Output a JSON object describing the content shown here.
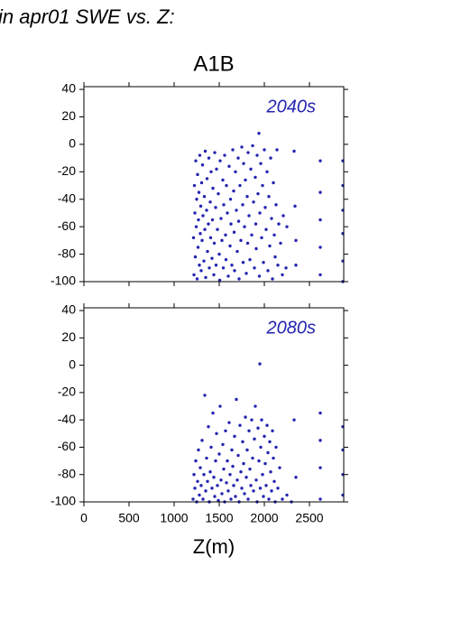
{
  "header": "in apr01 SWE vs. Z:",
  "chart_data": [
    {
      "type": "scatter",
      "title": "A1B",
      "annotation": "2040s",
      "color": "#2424b0",
      "xlim": [
        0,
        2880
      ],
      "ylim": [
        -100,
        42
      ],
      "yticks": [
        -100,
        -80,
        -60,
        -40,
        -20,
        0,
        20,
        40
      ],
      "x": [
        1215,
        1220,
        1225,
        1230,
        1235,
        1240,
        1245,
        1250,
        1255,
        1260,
        1265,
        1270,
        1275,
        1280,
        1285,
        1290,
        1295,
        1300,
        1305,
        1310,
        1315,
        1320,
        1330,
        1335,
        1340,
        1345,
        1350,
        1360,
        1365,
        1370,
        1380,
        1385,
        1390,
        1400,
        1405,
        1410,
        1420,
        1425,
        1430,
        1440,
        1445,
        1450,
        1460,
        1465,
        1470,
        1480,
        1490,
        1500,
        1505,
        1510,
        1520,
        1530,
        1540,
        1545,
        1550,
        1560,
        1570,
        1575,
        1580,
        1590,
        1600,
        1610,
        1620,
        1625,
        1630,
        1640,
        1650,
        1660,
        1665,
        1670,
        1680,
        1690,
        1700,
        1710,
        1715,
        1720,
        1730,
        1740,
        1750,
        1760,
        1765,
        1770,
        1780,
        1790,
        1800,
        1810,
        1815,
        1820,
        1830,
        1840,
        1850,
        1860,
        1870,
        1880,
        1890,
        1900,
        1905,
        1910,
        1920,
        1930,
        1940,
        1945,
        1950,
        1960,
        1970,
        1980,
        1990,
        2000,
        2010,
        2020,
        2030,
        2040,
        2050,
        2060,
        2070,
        2080,
        2090,
        2100,
        2110,
        2120,
        2130,
        2140,
        2150,
        2160,
        2180,
        2200,
        2210,
        2240,
        2250,
        2330,
        2340,
        2350,
        2350,
        2620,
        2620,
        2620,
        2620,
        2620,
        2870,
        2870,
        2870,
        2870,
        2870,
        2870
      ],
      "y": [
        -68,
        -95,
        -30,
        -50,
        -82,
        -12,
        -60,
        -40,
        -98,
        -22,
        -75,
        -55,
        -35,
        -88,
        -8,
        -65,
        -45,
        -92,
        -28,
        -70,
        -15,
        -52,
        -85,
        -38,
        -62,
        -5,
        -97,
        -48,
        -25,
        -78,
        -58,
        -10,
        -90,
        -42,
        -68,
        -20,
        -83,
        -55,
        -32,
        -95,
        -72,
        -6,
        -46,
        -88,
        -18,
        -62,
        -36,
        -80,
        -99,
        -12,
        -54,
        -70,
        -26,
        -90,
        -44,
        -8,
        -66,
        -84,
        -30,
        -50,
        -96,
        -16,
        -74,
        -40,
        -58,
        -88,
        -4,
        -34,
        -64,
        -92,
        -20,
        -48,
        -78,
        -10,
        -56,
        -98,
        -30,
        -70,
        -2,
        -44,
        -86,
        -14,
        -60,
        -26,
        -94,
        -38,
        -72,
        -6,
        -52,
        -84,
        -18,
        -66,
        -1,
        -42,
        -90,
        -24,
        -58,
        -76,
        -8,
        -36,
        8,
        -96,
        -50,
        -14,
        -68,
        -30,
        -86,
        -4,
        -46,
        -62,
        -20,
        -92,
        -38,
        -74,
        -10,
        -54,
        -98,
        -28,
        -66,
        -82,
        -44,
        -4,
        -88,
        -58,
        -72,
        -95,
        -52,
        -90,
        -60,
        -5,
        -45,
        -70,
        -88,
        -12,
        -35,
        -55,
        -75,
        -95,
        -12,
        -30,
        -48,
        -65,
        -85,
        -100
      ]
    },
    {
      "type": "scatter",
      "annotation": "2080s",
      "color": "#2424b0",
      "xlabel": "Z(m)",
      "xlim": [
        0,
        2880
      ],
      "xticks": [
        0,
        500,
        1000,
        1500,
        2000,
        2500
      ],
      "ylim": [
        -100,
        42
      ],
      "yticks": [
        -100,
        -80,
        -60,
        -40,
        -20,
        0,
        20,
        40
      ],
      "x": [
        1210,
        1220,
        1230,
        1240,
        1250,
        1260,
        1270,
        1280,
        1290,
        1300,
        1310,
        1320,
        1330,
        1340,
        1350,
        1360,
        1370,
        1380,
        1390,
        1400,
        1410,
        1420,
        1430,
        1440,
        1450,
        1460,
        1470,
        1480,
        1490,
        1500,
        1510,
        1520,
        1530,
        1540,
        1550,
        1560,
        1570,
        1580,
        1590,
        1600,
        1610,
        1620,
        1630,
        1640,
        1650,
        1660,
        1670,
        1680,
        1690,
        1700,
        1710,
        1720,
        1730,
        1740,
        1750,
        1760,
        1770,
        1780,
        1790,
        1800,
        1810,
        1820,
        1830,
        1840,
        1850,
        1860,
        1870,
        1880,
        1890,
        1900,
        1910,
        1920,
        1930,
        1940,
        1950,
        1955,
        1960,
        1970,
        1980,
        1990,
        2000,
        2010,
        2020,
        2030,
        2040,
        2050,
        2060,
        2070,
        2080,
        2090,
        2100,
        2110,
        2120,
        2130,
        2150,
        2170,
        2200,
        2250,
        2300,
        2330,
        2350,
        2620,
        2620,
        2620,
        2620,
        2870,
        2870,
        2870,
        2870
      ],
      "y": [
        -98,
        -80,
        -90,
        -70,
        -100,
        -85,
        -62,
        -95,
        -75,
        -88,
        -55,
        -98,
        -80,
        -22,
        -92,
        -68,
        -85,
        -45,
        -100,
        -78,
        -60,
        -90,
        -35,
        -82,
        -96,
        -70,
        -50,
        -88,
        -99,
        -65,
        -30,
        -84,
        -94,
        -58,
        -76,
        -100,
        -48,
        -86,
        -70,
        -92,
        -42,
        -80,
        -98,
        -62,
        -74,
        -88,
        -52,
        -96,
        -25,
        -84,
        -66,
        -100,
        -44,
        -78,
        -90,
        -56,
        -72,
        -94,
        -38,
        -82,
        -62,
        -98,
        -48,
        -76,
        -88,
        -40,
        -68,
        -92,
        -54,
        -30,
        -84,
        -100,
        -46,
        -70,
        1,
        -90,
        -60,
        -40,
        -80,
        -96,
        -52,
        -72,
        -88,
        -44,
        -64,
        -98,
        -56,
        -78,
        -92,
        -48,
        -68,
        -85,
        -100,
        -60,
        -90,
        -75,
        -98,
        -95,
        -100,
        -40,
        -82,
        -35,
        -55,
        -75,
        -98,
        -45,
        -62,
        -80,
        -95
      ]
    }
  ]
}
